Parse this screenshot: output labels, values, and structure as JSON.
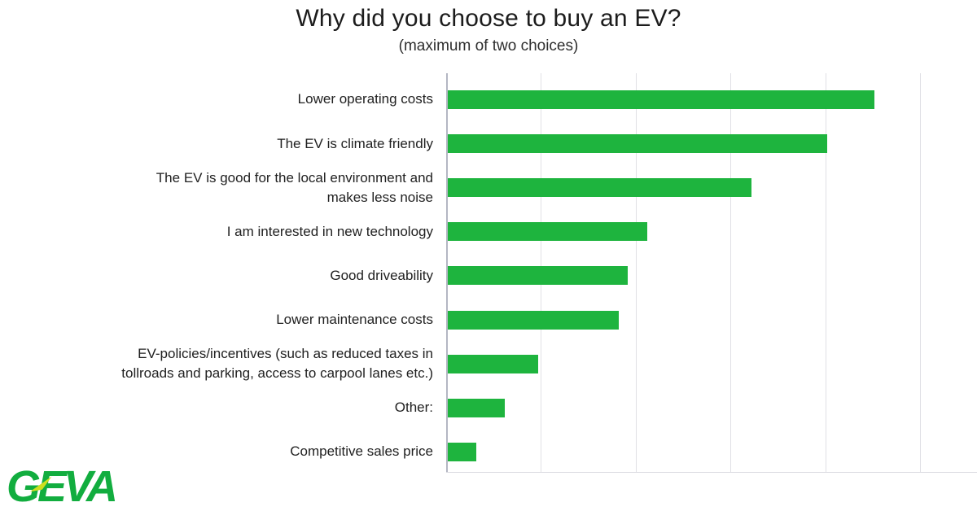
{
  "header": {
    "title": "Why did you choose to buy an EV?",
    "subtitle": "(maximum of two choices)"
  },
  "logo": {
    "text": "GEVA"
  },
  "colors": {
    "bar": "#1eb43e",
    "axis_line": "#b4b7c3",
    "gridline": "#e0e0e5",
    "plot_bottom_border": "#dcdce2",
    "title_text": "#1c1c1c",
    "subtitle_text": "#2e2e2e",
    "label_text": "#212121",
    "logo_green": "#12ad3f",
    "logo_accent": "#cddf1e"
  },
  "chart_data": {
    "type": "bar",
    "orientation": "horizontal",
    "title": "Why did you choose to buy an EV?",
    "subtitle": "(maximum of two choices)",
    "categories": [
      "Lower operating costs",
      "The EV is climate friendly",
      "The EV is good for the local environment and\nmakes less noise",
      "I am interested in new technology",
      "Good driveability",
      "Lower maintenance costs",
      "EV-policies/incentives (such as reduced taxes in\ntollroads and parking, access to carpool lanes etc.)",
      "Other:",
      "Competitive sales price"
    ],
    "values_percent": [
      45,
      40,
      32,
      21,
      19,
      18,
      9.5,
      6,
      3
    ],
    "xlabel": "",
    "ylabel": "",
    "xlim": [
      0,
      56
    ],
    "grid_interval": 10,
    "x_tick_labels_visible": false,
    "legend": "none",
    "bar_color": "#1eb43e"
  }
}
